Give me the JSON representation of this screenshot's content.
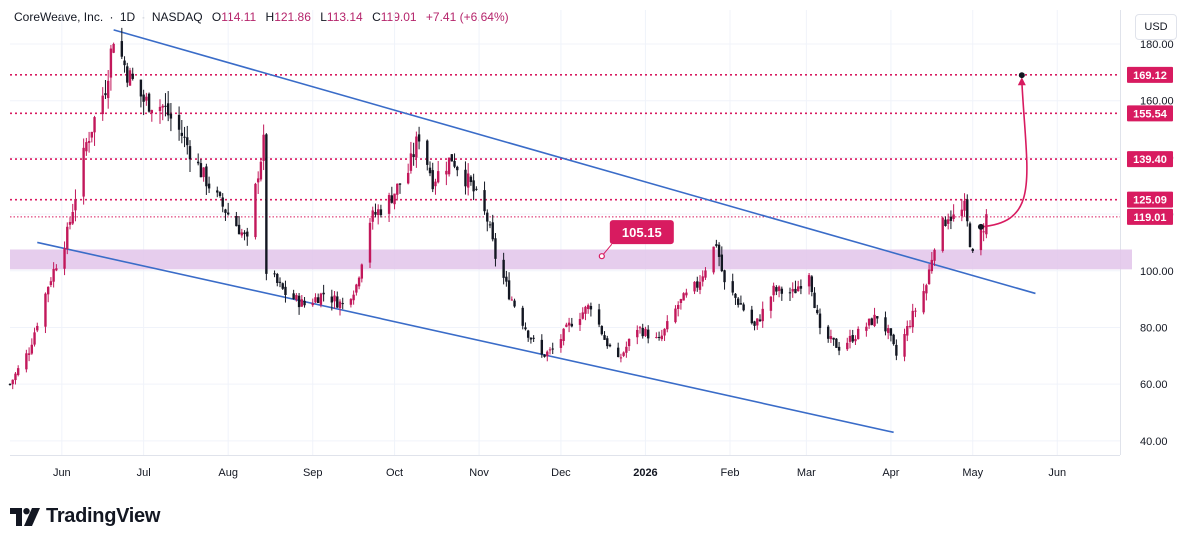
{
  "header": {
    "title": "CoreWeave, Inc.",
    "interval": "1D",
    "exchange": "NASDAQ",
    "open_label": "O",
    "open": "114.11",
    "high_label": "H",
    "high": "121.86",
    "low_label": "L",
    "low": "113.14",
    "close_label": "C",
    "close": "119.01",
    "change": "+7.41 (+6.64%)"
  },
  "currency": "USD",
  "brand": {
    "name": "TradingView"
  },
  "colors": {
    "up": "#c2185b",
    "down": "#131722",
    "trendline": "#3a6cc8",
    "zone": "#e2c4ea",
    "accent": "#d81b60",
    "grid": "#f0f3fa"
  },
  "chart_data": {
    "type": "candlestick",
    "y_axis": {
      "range": [
        35,
        192
      ],
      "ticks": [
        40,
        60,
        80,
        100,
        120,
        140,
        160,
        180
      ]
    },
    "x_axis": {
      "labels": [
        {
          "label": "Jun",
          "date": "2025-06-01"
        },
        {
          "label": "Jul",
          "date": "2025-07-01"
        },
        {
          "label": "Aug",
          "date": "2025-08-01"
        },
        {
          "label": "Sep",
          "date": "2025-09-01"
        },
        {
          "label": "Oct",
          "date": "2025-10-01"
        },
        {
          "label": "Nov",
          "date": "2025-11-01"
        },
        {
          "label": "Dec",
          "date": "2025-12-01"
        },
        {
          "label": "2026",
          "date": "2026-01-01"
        },
        {
          "label": "Feb",
          "date": "2026-02-01"
        },
        {
          "label": "Mar",
          "date": "2026-03-01"
        },
        {
          "label": "Apr",
          "date": "2026-04-01"
        },
        {
          "label": "May",
          "date": "2026-05-01"
        },
        {
          "label": "Jun",
          "date": "2026-06-01"
        }
      ],
      "range": [
        "2025-05-13",
        "2026-06-24"
      ]
    },
    "price_levels": [
      {
        "value": 169.12,
        "label": "169.12",
        "style": "dotted"
      },
      {
        "value": 155.54,
        "label": "155.54",
        "style": "dotted"
      },
      {
        "value": 139.4,
        "label": "139.40",
        "style": "dotted"
      },
      {
        "value": 125.09,
        "label": "125.09",
        "style": "dotted"
      },
      {
        "value": 119.01,
        "label": "119.01",
        "style": "dotted-thin"
      }
    ],
    "support_zone": {
      "from": 100.5,
      "to": 107.5
    },
    "annotation": {
      "label": "105.15",
      "date": "2025-12-16",
      "value": 105.15
    },
    "trendlines": [
      {
        "name": "upper",
        "from": {
          "date": "2025-06-20",
          "value": 185
        },
        "to": {
          "date": "2026-05-24",
          "value": 92
        }
      },
      {
        "name": "lower",
        "from": {
          "date": "2025-05-23",
          "value": 110
        },
        "to": {
          "date": "2026-04-02",
          "value": 43
        }
      }
    ],
    "projection": {
      "from": {
        "date": "2026-05-04",
        "value": 115.5
      },
      "to": {
        "date": "2026-05-19",
        "value": 169
      }
    },
    "anchor_points": [
      {
        "date": "2025-05-13",
        "value": 60
      },
      {
        "date": "2025-05-20",
        "value": 72
      },
      {
        "date": "2025-05-27",
        "value": 95
      },
      {
        "date": "2025-06-03",
        "value": 113
      },
      {
        "date": "2025-06-10",
        "value": 145
      },
      {
        "date": "2025-06-17",
        "value": 165
      },
      {
        "date": "2025-06-20",
        "value": 183
      },
      {
        "date": "2025-06-25",
        "value": 170
      },
      {
        "date": "2025-07-01",
        "value": 160
      },
      {
        "date": "2025-07-08",
        "value": 158
      },
      {
        "date": "2025-07-15",
        "value": 148
      },
      {
        "date": "2025-07-22",
        "value": 135
      },
      {
        "date": "2025-07-29",
        "value": 124
      },
      {
        "date": "2025-08-05",
        "value": 115
      },
      {
        "date": "2025-08-08",
        "value": 110
      },
      {
        "date": "2025-08-12",
        "value": 135
      },
      {
        "date": "2025-08-14",
        "value": 145
      },
      {
        "date": "2025-08-15",
        "value": 100
      },
      {
        "date": "2025-08-22",
        "value": 92
      },
      {
        "date": "2025-08-29",
        "value": 88
      },
      {
        "date": "2025-09-05",
        "value": 92
      },
      {
        "date": "2025-09-12",
        "value": 88
      },
      {
        "date": "2025-09-17",
        "value": 95
      },
      {
        "date": "2025-09-22",
        "value": 118
      },
      {
        "date": "2025-09-29",
        "value": 125
      },
      {
        "date": "2025-10-06",
        "value": 135
      },
      {
        "date": "2025-10-10",
        "value": 148
      },
      {
        "date": "2025-10-15",
        "value": 132
      },
      {
        "date": "2025-10-22",
        "value": 140
      },
      {
        "date": "2025-10-29",
        "value": 130
      },
      {
        "date": "2025-11-04",
        "value": 118
      },
      {
        "date": "2025-11-07",
        "value": 105
      },
      {
        "date": "2025-11-12",
        "value": 92
      },
      {
        "date": "2025-11-19",
        "value": 78
      },
      {
        "date": "2025-11-24",
        "value": 70
      },
      {
        "date": "2025-11-28",
        "value": 72
      },
      {
        "date": "2025-12-05",
        "value": 82
      },
      {
        "date": "2025-12-12",
        "value": 88
      },
      {
        "date": "2025-12-17",
        "value": 76
      },
      {
        "date": "2025-12-22",
        "value": 68
      },
      {
        "date": "2025-12-29",
        "value": 80
      },
      {
        "date": "2026-01-06",
        "value": 75
      },
      {
        "date": "2026-01-13",
        "value": 88
      },
      {
        "date": "2026-01-20",
        "value": 95
      },
      {
        "date": "2026-01-27",
        "value": 110
      },
      {
        "date": "2026-01-30",
        "value": 95
      },
      {
        "date": "2026-02-05",
        "value": 88
      },
      {
        "date": "2026-02-10",
        "value": 80
      },
      {
        "date": "2026-02-17",
        "value": 93
      },
      {
        "date": "2026-02-24",
        "value": 92
      },
      {
        "date": "2026-03-02",
        "value": 100
      },
      {
        "date": "2026-03-06",
        "value": 78
      },
      {
        "date": "2026-03-13",
        "value": 73
      },
      {
        "date": "2026-03-20",
        "value": 78
      },
      {
        "date": "2026-03-27",
        "value": 84
      },
      {
        "date": "2026-03-31",
        "value": 78
      },
      {
        "date": "2026-04-03",
        "value": 70
      },
      {
        "date": "2026-04-08",
        "value": 82
      },
      {
        "date": "2026-04-14",
        "value": 95
      },
      {
        "date": "2026-04-17",
        "value": 110
      },
      {
        "date": "2026-04-22",
        "value": 120
      },
      {
        "date": "2026-04-25",
        "value": 118
      },
      {
        "date": "2026-04-28",
        "value": 122
      },
      {
        "date": "2026-05-01",
        "value": 105
      },
      {
        "date": "2026-05-04",
        "value": 113
      },
      {
        "date": "2026-05-06",
        "value": 119
      }
    ]
  }
}
